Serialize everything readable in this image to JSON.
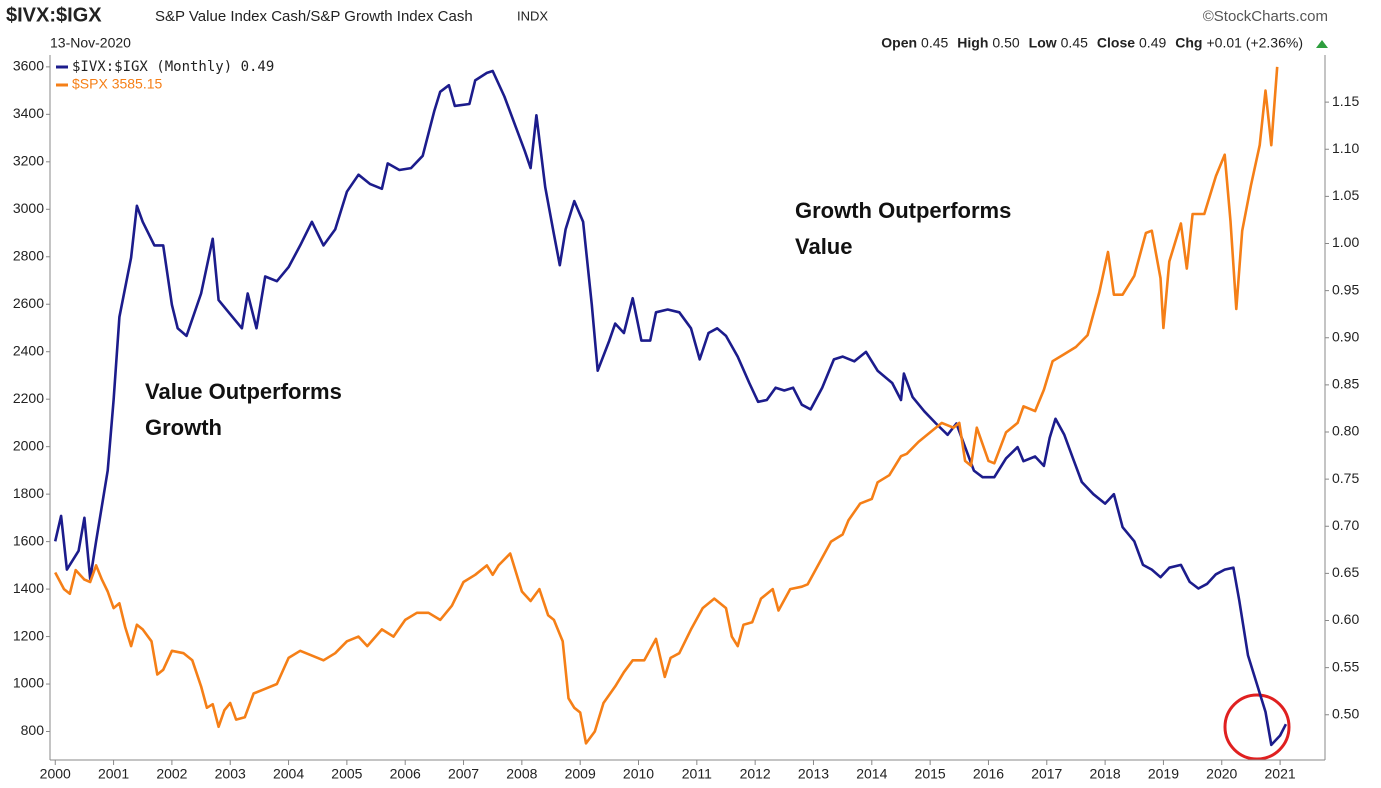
{
  "chart_data": {
    "type": "line",
    "title": "$IVX:$IGX",
    "subtitle": "S&P Value Index Cash/S&P Growth Index Cash",
    "exchange": "INDX",
    "date": "13-Nov-2020",
    "source": "©StockCharts.com",
    "quote": [
      {
        "label": "Open",
        "value": "0.45"
      },
      {
        "label": "High",
        "value": "0.50"
      },
      {
        "label": "Low",
        "value": "0.45"
      },
      {
        "label": "Close",
        "value": "0.49"
      },
      {
        "label": "Chg",
        "value": "+0.01 (+2.36%)"
      }
    ],
    "annotations": [
      {
        "lines": [
          "Value Outperforms",
          "Growth"
        ]
      },
      {
        "lines": [
          "Growth Outperforms",
          "Value"
        ]
      }
    ],
    "xlim": [
      1999.91,
      2021.77
    ],
    "xticks": [
      2000,
      2001,
      2002,
      2003,
      2004,
      2005,
      2006,
      2007,
      2008,
      2009,
      2010,
      2011,
      2012,
      2013,
      2014,
      2015,
      2016,
      2017,
      2018,
      2019,
      2020,
      2021
    ],
    "ylim": [
      680,
      3650
    ],
    "yticks": [
      800,
      1000,
      1200,
      1400,
      1600,
      1800,
      2000,
      2200,
      2400,
      2600,
      2800,
      3000,
      3200,
      3400,
      3600
    ],
    "y2lim": [
      0.452,
      1.2
    ],
    "y2ticks": [
      {
        "value": 0.5,
        "label": "0.50"
      },
      {
        "value": 0.55,
        "label": "0.55"
      },
      {
        "value": 0.6,
        "label": "0.60"
      },
      {
        "value": 0.65,
        "label": "0.65"
      },
      {
        "value": 0.7,
        "label": "0.70"
      },
      {
        "value": 0.75,
        "label": "0.75"
      },
      {
        "value": 0.8,
        "label": "0.80"
      },
      {
        "value": 0.85,
        "label": "0.85"
      },
      {
        "value": 0.9,
        "label": "0.90"
      },
      {
        "value": 0.95,
        "label": "0.95"
      },
      {
        "value": 1.0,
        "label": "1.00"
      },
      {
        "value": 1.05,
        "label": "1.05"
      },
      {
        "value": 1.1,
        "label": "1.10"
      },
      {
        "value": 1.15,
        "label": "1.15"
      }
    ],
    "grid": false,
    "legend": "top-left",
    "series": [
      {
        "name": "$IVX:$IGX (Monthly) 0.49",
        "color": "#1c1c8c",
        "axis": "y2",
        "x": [
          2000.0,
          2000.1,
          2000.2,
          2000.4,
          2000.5,
          2000.6,
          2000.7,
          2000.9,
          2001.0,
          2001.1,
          2001.3,
          2001.4,
          2001.5,
          2001.7,
          2001.85,
          2002.0,
          2002.1,
          2002.25,
          2002.5,
          2002.7,
          2002.8,
          2003.0,
          2003.2,
          2003.3,
          2003.45,
          2003.6,
          2003.8,
          2004.0,
          2004.2,
          2004.4,
          2004.6,
          2004.8,
          2005.0,
          2005.2,
          2005.4,
          2005.6,
          2005.7,
          2005.9,
          2006.1,
          2006.3,
          2006.5,
          2006.6,
          2006.75,
          2006.85,
          2007.1,
          2007.2,
          2007.4,
          2007.5,
          2007.7,
          2007.9,
          2008.05,
          2008.15,
          2008.25,
          2008.4,
          2008.55,
          2008.65,
          2008.75,
          2008.9,
          2009.05,
          2009.2,
          2009.3,
          2009.5,
          2009.6,
          2009.75,
          2009.9,
          2010.05,
          2010.2,
          2010.3,
          2010.5,
          2010.7,
          2010.9,
          2011.05,
          2011.2,
          2011.35,
          2011.5,
          2011.7,
          2011.9,
          2012.05,
          2012.2,
          2012.35,
          2012.5,
          2012.65,
          2012.8,
          2012.95,
          2013.15,
          2013.35,
          2013.5,
          2013.7,
          2013.9,
          2014.1,
          2014.35,
          2014.5,
          2014.55,
          2014.7,
          2014.9,
          2015.1,
          2015.3,
          2015.45,
          2015.6,
          2015.75,
          2015.9,
          2016.1,
          2016.3,
          2016.5,
          2016.6,
          2016.8,
          2016.95,
          2017.05,
          2017.15,
          2017.3,
          2017.45,
          2017.6,
          2017.8,
          2018.0,
          2018.15,
          2018.3,
          2018.5,
          2018.65,
          2018.8,
          2018.95,
          2019.1,
          2019.3,
          2019.45,
          2019.6,
          2019.75,
          2019.9,
          2020.05,
          2020.2,
          2020.3,
          2020.45,
          2020.6,
          2020.75,
          2020.85,
          2021.0,
          2021.1
        ],
        "values": [
          0.684,
          0.711,
          0.654,
          0.674,
          0.709,
          0.644,
          0.684,
          0.759,
          0.834,
          0.922,
          0.985,
          1.04,
          1.023,
          0.998,
          0.998,
          0.935,
          0.91,
          0.902,
          0.947,
          1.005,
          0.94,
          0.925,
          0.91,
          0.947,
          0.91,
          0.965,
          0.96,
          0.975,
          0.998,
          1.023,
          0.998,
          1.015,
          1.055,
          1.073,
          1.063,
          1.058,
          1.085,
          1.078,
          1.08,
          1.093,
          1.141,
          1.161,
          1.168,
          1.146,
          1.148,
          1.173,
          1.181,
          1.183,
          1.156,
          1.123,
          1.098,
          1.08,
          1.136,
          1.06,
          1.01,
          0.977,
          1.015,
          1.045,
          1.023,
          0.935,
          0.865,
          0.897,
          0.915,
          0.905,
          0.942,
          0.897,
          0.897,
          0.927,
          0.93,
          0.927,
          0.91,
          0.877,
          0.905,
          0.91,
          0.902,
          0.88,
          0.852,
          0.832,
          0.834,
          0.847,
          0.844,
          0.847,
          0.829,
          0.824,
          0.847,
          0.877,
          0.88,
          0.875,
          0.885,
          0.865,
          0.852,
          0.834,
          0.862,
          0.837,
          0.822,
          0.809,
          0.797,
          0.809,
          0.784,
          0.759,
          0.752,
          0.752,
          0.772,
          0.784,
          0.769,
          0.774,
          0.764,
          0.794,
          0.814,
          0.797,
          0.772,
          0.747,
          0.734,
          0.724,
          0.734,
          0.699,
          0.684,
          0.659,
          0.654,
          0.646,
          0.656,
          0.659,
          0.641,
          0.634,
          0.639,
          0.649,
          0.654,
          0.656,
          0.621,
          0.563,
          0.533,
          0.503,
          0.468,
          0.478,
          0.49
        ]
      },
      {
        "name": "$SPX 3585.15",
        "color": "#f57f17",
        "axis": "y",
        "x": [
          2000.0,
          2000.15,
          2000.25,
          2000.35,
          2000.5,
          2000.6,
          2000.7,
          2000.8,
          2000.9,
          2001.0,
          2001.1,
          2001.2,
          2001.3,
          2001.4,
          2001.5,
          2001.65,
          2001.75,
          2001.85,
          2002.0,
          2002.2,
          2002.35,
          2002.5,
          2002.6,
          2002.7,
          2002.8,
          2002.9,
          2003.0,
          2003.1,
          2003.25,
          2003.4,
          2003.6,
          2003.8,
          2004.0,
          2004.2,
          2004.4,
          2004.6,
          2004.8,
          2005.0,
          2005.2,
          2005.35,
          2005.6,
          2005.8,
          2006.0,
          2006.2,
          2006.4,
          2006.6,
          2006.8,
          2007.0,
          2007.2,
          2007.4,
          2007.5,
          2007.6,
          2007.8,
          2008.0,
          2008.15,
          2008.3,
          2008.45,
          2008.55,
          2008.7,
          2008.8,
          2008.9,
          2009.0,
          2009.1,
          2009.25,
          2009.4,
          2009.6,
          2009.75,
          2009.9,
          2010.1,
          2010.3,
          2010.45,
          2010.55,
          2010.7,
          2010.9,
          2011.1,
          2011.3,
          2011.5,
          2011.6,
          2011.7,
          2011.8,
          2011.95,
          2012.1,
          2012.3,
          2012.4,
          2012.6,
          2012.8,
          2012.9,
          2013.1,
          2013.3,
          2013.5,
          2013.6,
          2013.8,
          2014.0,
          2014.1,
          2014.3,
          2014.5,
          2014.6,
          2014.8,
          2015.0,
          2015.2,
          2015.4,
          2015.5,
          2015.6,
          2015.7,
          2015.8,
          2016.0,
          2016.1,
          2016.3,
          2016.5,
          2016.6,
          2016.8,
          2016.95,
          2017.1,
          2017.3,
          2017.5,
          2017.7,
          2017.9,
          2018.05,
          2018.15,
          2018.3,
          2018.5,
          2018.7,
          2018.8,
          2018.95,
          2019.0,
          2019.1,
          2019.3,
          2019.4,
          2019.5,
          2019.7,
          2019.9,
          2020.05,
          2020.15,
          2020.25,
          2020.35,
          2020.5,
          2020.65,
          2020.75,
          2020.85,
          2020.95
        ],
        "values": [
          1470,
          1400,
          1380,
          1480,
          1440,
          1430,
          1500,
          1440,
          1390,
          1320,
          1340,
          1240,
          1160,
          1250,
          1230,
          1180,
          1040,
          1060,
          1140,
          1130,
          1100,
          990,
          900,
          915,
          820,
          890,
          920,
          850,
          860,
          960,
          980,
          1000,
          1110,
          1140,
          1120,
          1100,
          1130,
          1180,
          1200,
          1160,
          1230,
          1200,
          1270,
          1300,
          1300,
          1270,
          1330,
          1430,
          1460,
          1500,
          1460,
          1500,
          1550,
          1390,
          1350,
          1400,
          1290,
          1270,
          1180,
          940,
          900,
          880,
          750,
          800,
          920,
          990,
          1050,
          1100,
          1100,
          1190,
          1030,
          1110,
          1130,
          1230,
          1320,
          1360,
          1320,
          1200,
          1160,
          1250,
          1260,
          1360,
          1400,
          1310,
          1400,
          1410,
          1420,
          1510,
          1600,
          1630,
          1690,
          1760,
          1780,
          1850,
          1880,
          1960,
          1970,
          2020,
          2060,
          2100,
          2080,
          2100,
          1940,
          1920,
          2080,
          1940,
          1930,
          2060,
          2100,
          2170,
          2150,
          2240,
          2360,
          2390,
          2420,
          2470,
          2650,
          2820,
          2640,
          2640,
          2720,
          2900,
          2910,
          2710,
          2500,
          2780,
          2940,
          2750,
          2980,
          2980,
          3140,
          3230,
          2950,
          2580,
          2910,
          3100,
          3270,
          3500,
          3270,
          3600
        ]
      }
    ]
  }
}
